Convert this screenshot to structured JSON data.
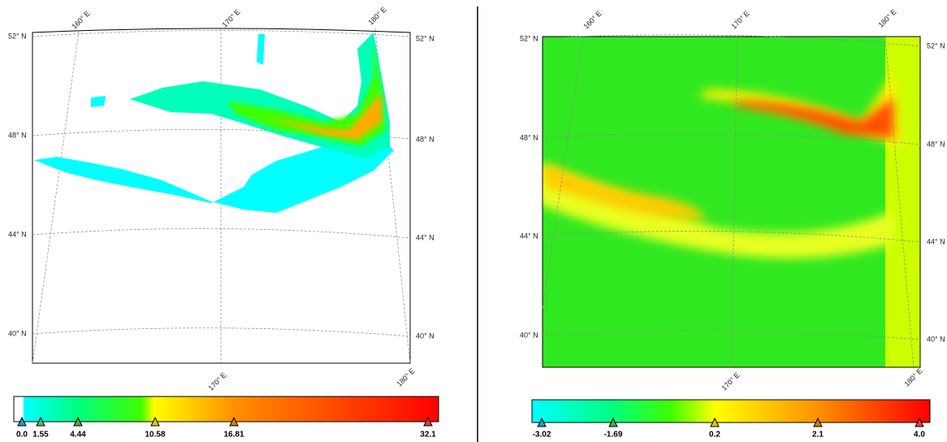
{
  "left_panel": {
    "top_labels": [
      "160° E",
      "170° E",
      "180° E"
    ],
    "left_labels": [
      "52° N",
      "48° N",
      "44° N",
      "40° N"
    ],
    "right_labels": [
      "52° N",
      "48° N",
      "44° N",
      "40° N"
    ],
    "bottom_labels": [
      "170° E",
      "180° E"
    ],
    "colorbar_labels": [
      "0.0",
      "1.55",
      "4.44",
      "10.58",
      "16.81",
      "32.1"
    ]
  },
  "right_panel": {
    "top_labels": [
      "160° E",
      "170° E",
      "180° E"
    ],
    "left_labels": [
      "52° N",
      "48° N",
      "44° N",
      "40° N"
    ],
    "right_labels": [
      "52° N",
      "48° N",
      "44° N",
      "40° N"
    ],
    "bottom_labels": [
      "170° E",
      "180° E"
    ],
    "colorbar_labels": [
      "-3.02",
      "-1.69",
      "0.2",
      "2.1",
      "4.0"
    ]
  }
}
